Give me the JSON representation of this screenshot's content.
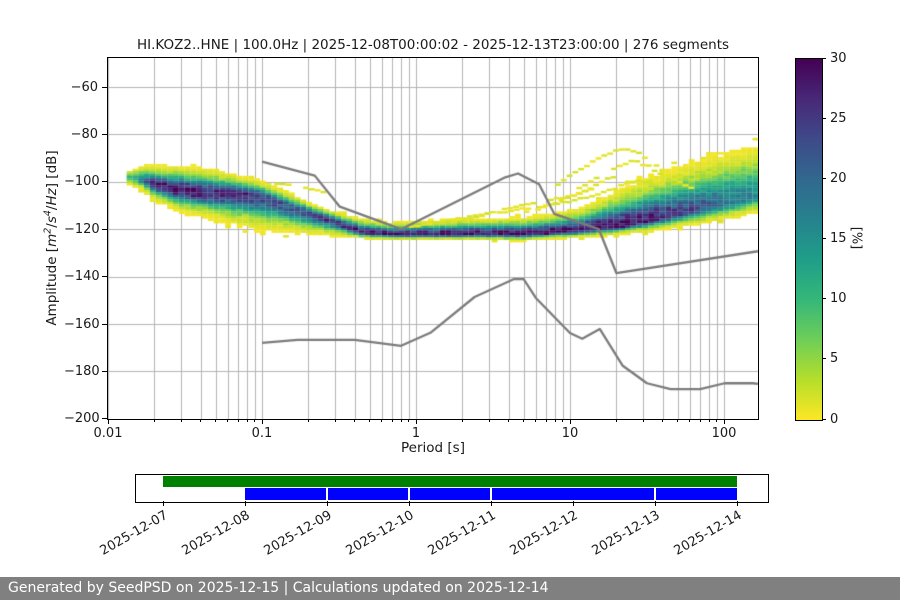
{
  "header": {
    "title": "HI.KOZ2..HNE | 100.0Hz | 2025-12-08T00:00:02 - 2025-12-13T23:00:00 | 276 segments",
    "station": "HI.KOZ2..HNE",
    "sampling_rate": "100.0Hz",
    "time_range": "2025-12-08T00:00:02 - 2025-12-13T23:00:00",
    "segments": "276 segments"
  },
  "footer": {
    "text": "Generated by SeedPSD on 2025-12-15 | Calculations updated on 2025-12-14",
    "background": "#808080",
    "text_color": "#ffffff"
  },
  "colors": {
    "grid": "#b3b3b3",
    "noise_model_line": "#7b7b7b",
    "timeline_green": "#008000",
    "timeline_blue": "#0000ff",
    "spine": "#000000"
  },
  "chart_data": {
    "type": "heatmap",
    "title": "HI.KOZ2..HNE | 100.0Hz | 2025-12-08T00:00:02 - 2025-12-13T23:00:00 | 276 segments",
    "xlabel": "Period [s]",
    "ylabel": "Amplitude [m2/s4/Hz] [dB]",
    "ylabel_parts": {
      "a": "Amplitude [",
      "m": "m",
      "m_exp": "2",
      "slash1": "/",
      "s": "s",
      "s_exp": "4",
      "slash2": "/",
      "hz": "Hz",
      "end": "] [dB]"
    },
    "x_scale": "log",
    "xlim": [
      0.01,
      166
    ],
    "ylim": [
      -200,
      -48
    ],
    "x_ticks": [
      0.01,
      0.1,
      1,
      10,
      100
    ],
    "x_tick_labels": [
      "0.01",
      "0.1",
      "1",
      "10",
      "100"
    ],
    "y_ticks": [
      -60,
      -80,
      -100,
      -120,
      -140,
      -160,
      -180,
      -200
    ],
    "y_tick_labels": [
      "−60",
      "−80",
      "−100",
      "−120",
      "−140",
      "−160",
      "−180",
      "−200"
    ],
    "grid": "both",
    "colorbar": {
      "label": "[%]",
      "min": 0,
      "max": 30,
      "ticks": [
        0,
        5,
        10,
        15,
        20,
        25,
        30
      ],
      "tick_labels": [
        "0",
        "5",
        "10",
        "15",
        "20",
        "25",
        "30"
      ],
      "colormap": "viridis_r",
      "stops_low_to_high": [
        "#fde725",
        "#b5de2b",
        "#6ece58",
        "#35b779",
        "#1f9e89",
        "#26828e",
        "#31688e",
        "#3e4a89",
        "#482878",
        "#440154"
      ]
    },
    "noise_models": {
      "high_noise_model": [
        [
          0.1,
          -91.5
        ],
        [
          0.22,
          -97.4
        ],
        [
          0.32,
          -110.5
        ],
        [
          0.8,
          -120.0
        ],
        [
          3.8,
          -98.1
        ],
        [
          4.6,
          -96.5
        ],
        [
          6.3,
          -101.0
        ],
        [
          7.9,
          -113.5
        ],
        [
          15.4,
          -120.0
        ],
        [
          20.0,
          -138.5
        ],
        [
          166.0,
          -129.3
        ]
      ],
      "low_noise_model": [
        [
          0.1,
          -168.0
        ],
        [
          0.17,
          -166.7
        ],
        [
          0.4,
          -166.7
        ],
        [
          0.8,
          -169.2
        ],
        [
          1.24,
          -163.7
        ],
        [
          2.4,
          -148.6
        ],
        [
          4.3,
          -141.1
        ],
        [
          5.0,
          -141.1
        ],
        [
          6.0,
          -149.0
        ],
        [
          10.0,
          -163.8
        ],
        [
          12.0,
          -166.2
        ],
        [
          15.6,
          -162.1
        ],
        [
          21.9,
          -177.5
        ],
        [
          31.6,
          -185.0
        ],
        [
          45.0,
          -187.5
        ],
        [
          70.0,
          -187.5
        ],
        [
          101.0,
          -185.0
        ],
        [
          154.0,
          -185.0
        ],
        [
          166.0,
          -185.3
        ]
      ]
    },
    "ppsd_envelope_columns_T_top_ridge_bottom_peakpct": [
      [
        0.014,
        -95.0,
        -98.0,
        -102.0,
        10
      ],
      [
        0.017,
        -93.0,
        -99.5,
        -104.0,
        18
      ],
      [
        0.02,
        -93.5,
        -101.5,
        -108.0,
        28
      ],
      [
        0.03,
        -94.0,
        -103.5,
        -113.0,
        30
      ],
      [
        0.05,
        -95.5,
        -105.0,
        -116.0,
        28
      ],
      [
        0.07,
        -98.0,
        -104.5,
        -119.0,
        27
      ],
      [
        0.1,
        -100.0,
        -106.5,
        -121.0,
        25
      ],
      [
        0.15,
        -105.0,
        -110.5,
        -122.0,
        22
      ],
      [
        0.22,
        -110.0,
        -114.0,
        -122.5,
        24
      ],
      [
        0.3,
        -113.0,
        -117.0,
        -123.0,
        26
      ],
      [
        0.45,
        -116.0,
        -121.5,
        -124.0,
        30
      ],
      [
        0.7,
        -117.5,
        -122.3,
        -124.5,
        30
      ],
      [
        1.2,
        -116.5,
        -122.3,
        -124.5,
        30
      ],
      [
        2.5,
        -116.0,
        -122.0,
        -124.5,
        30
      ],
      [
        5.0,
        -115.5,
        -122.0,
        -125.0,
        30
      ],
      [
        8.0,
        -114.0,
        -121.3,
        -124.0,
        30
      ],
      [
        12.0,
        -111.5,
        -120.5,
        -123.5,
        30
      ],
      [
        20.0,
        -105.0,
        -118.7,
        -122.5,
        30
      ],
      [
        30.0,
        -100.0,
        -116.8,
        -121.5,
        28
      ],
      [
        50.0,
        -95.0,
        -113.5,
        -119.5,
        25
      ],
      [
        80.0,
        -90.5,
        -110.5,
        -117.5,
        21
      ],
      [
        120.0,
        -87.5,
        -108.0,
        -115.5,
        18
      ],
      [
        166.0,
        -84.5,
        -105.5,
        -113.5,
        16
      ]
    ],
    "low_probability_streaks": [
      [
        [
          0.12,
          -100.5
        ],
        [
          0.18,
          -102.0
        ],
        [
          0.26,
          -104.5
        ]
      ],
      [
        [
          0.9,
          -119.0
        ],
        [
          2.0,
          -115.0
        ],
        [
          4.0,
          -111.0
        ],
        [
          7.0,
          -108.0
        ],
        [
          11.0,
          -105.0
        ],
        [
          15.0,
          -102.5
        ]
      ],
      [
        [
          1.4,
          -117.5
        ],
        [
          3.0,
          -113.5
        ],
        [
          6.0,
          -110.5
        ],
        [
          10.0,
          -108.0
        ],
        [
          15.0,
          -105.0
        ],
        [
          20.0,
          -102.0
        ],
        [
          28.0,
          -99.5
        ],
        [
          38.0,
          -100.5
        ]
      ],
      [
        [
          5.0,
          -113.0
        ],
        [
          8.0,
          -108.5
        ],
        [
          12.0,
          -103.5
        ],
        [
          16.0,
          -99.5
        ],
        [
          20.0,
          -97.0
        ]
      ],
      [
        [
          8.0,
          -101.0
        ],
        [
          11.0,
          -95.0
        ],
        [
          15.0,
          -89.5
        ],
        [
          19.0,
          -86.8
        ],
        [
          23.0,
          -86.3
        ],
        [
          28.0,
          -88.5
        ],
        [
          33.0,
          -92.0
        ],
        [
          40.0,
          -96.5
        ],
        [
          50.0,
          -100.5
        ],
        [
          60.0,
          -103.0
        ]
      ],
      [
        [
          11.0,
          -103.0
        ],
        [
          15.0,
          -97.5
        ],
        [
          20.0,
          -93.0
        ],
        [
          25.0,
          -91.3
        ],
        [
          31.0,
          -93.5
        ],
        [
          38.0,
          -97.0
        ],
        [
          47.0,
          -100.5
        ]
      ]
    ],
    "timeline": {
      "dates": [
        "2025-12-07",
        "2025-12-08",
        "2025-12-09",
        "2025-12-10",
        "2025-12-11",
        "2025-12-12",
        "2025-12-13",
        "2025-12-14"
      ],
      "green_coverage": {
        "start": "2025-12-07",
        "end": "2025-12-14"
      },
      "blue_coverage": {
        "start": "2025-12-08",
        "end": "2025-12-14",
        "gaps_at": [
          "2025-12-09",
          "2025-12-10",
          "2025-12-11",
          "2025-12-13"
        ]
      }
    }
  }
}
